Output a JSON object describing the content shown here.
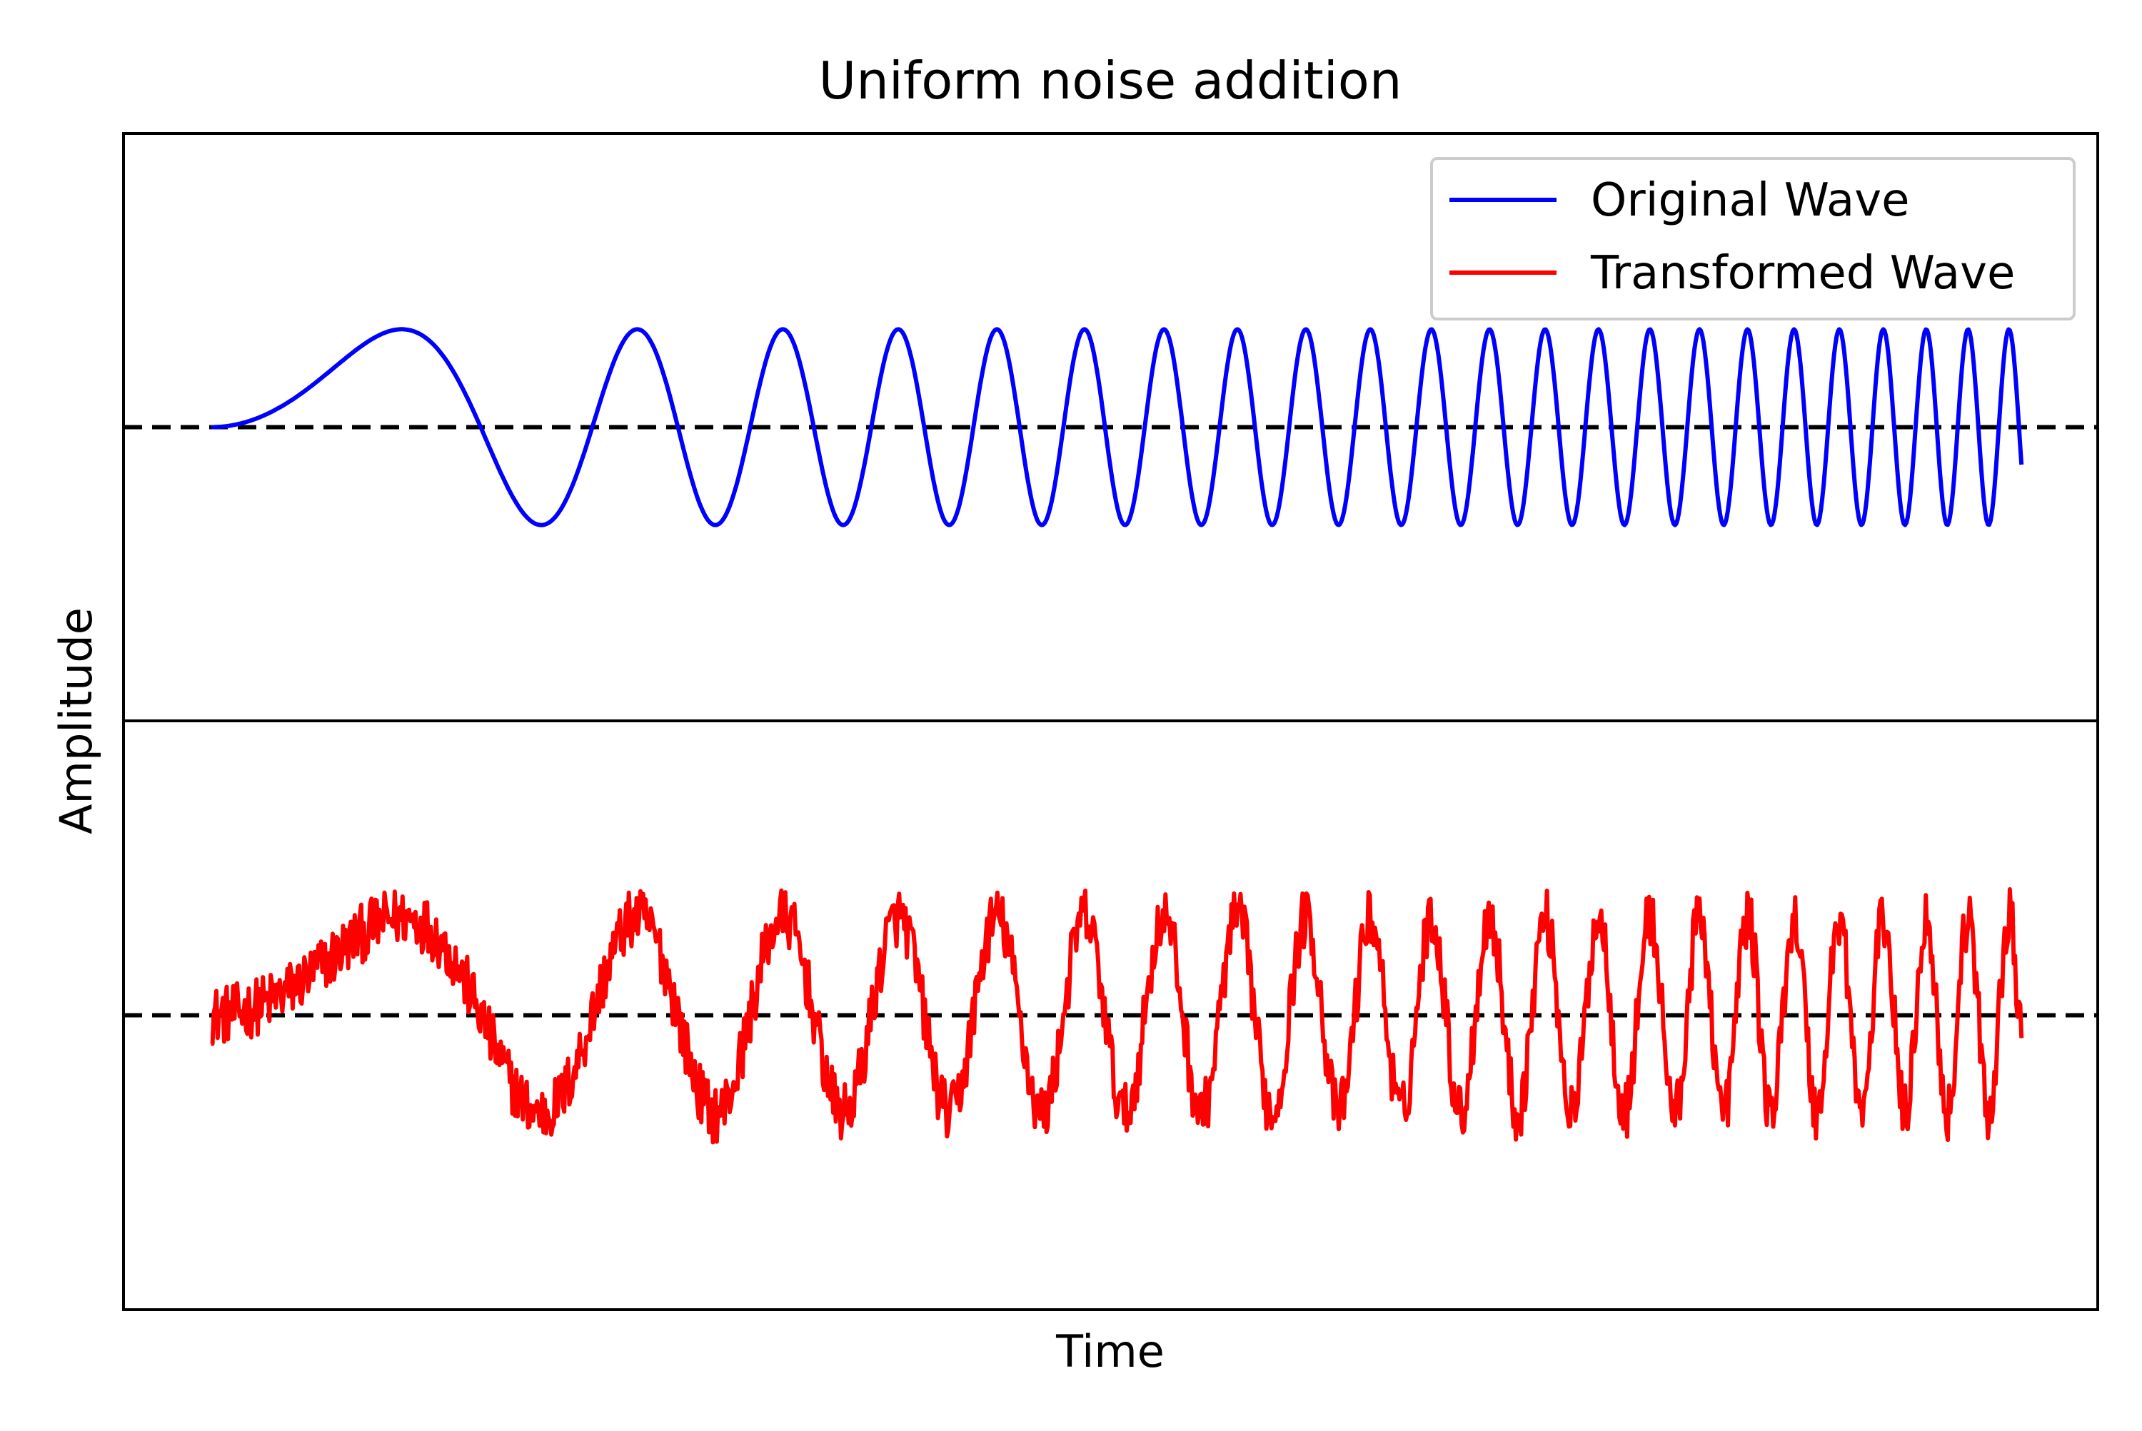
{
  "chart_data": {
    "type": "line",
    "title": "Uniform noise addition",
    "xlabel": "Time",
    "ylabel": "Amplitude",
    "grid": false,
    "xticks_visible": false,
    "yticks_visible": false,
    "legend": {
      "placement": "top-right",
      "entries": [
        {
          "label": "Original Wave",
          "color": "#0000ff"
        },
        {
          "label": "Transformed Wave",
          "color": "#ff0000"
        }
      ]
    },
    "panels": [
      {
        "position": "top",
        "series": [
          {
            "name": "Original Wave",
            "color": "#0000ff",
            "function": "sin(2*pi*t^2)",
            "t_start": 0,
            "t_end": 4.75,
            "amplitude": 1
          }
        ],
        "baseline": 0,
        "baseline_style": "dashed",
        "ylim": [
          -3,
          3
        ]
      },
      {
        "position": "bottom",
        "series": [
          {
            "name": "Transformed Wave",
            "color": "#ff0000",
            "function": "sin(2*pi*t^2) + uniform_noise",
            "noise_range": [
              -0.3,
              0.3
            ],
            "t_start": 0,
            "t_end": 4.75,
            "amplitude": 1
          }
        ],
        "baseline": 0,
        "baseline_style": "dashed",
        "ylim": [
          -3,
          3
        ]
      }
    ],
    "xlim": [
      -0.23,
      4.95
    ]
  }
}
